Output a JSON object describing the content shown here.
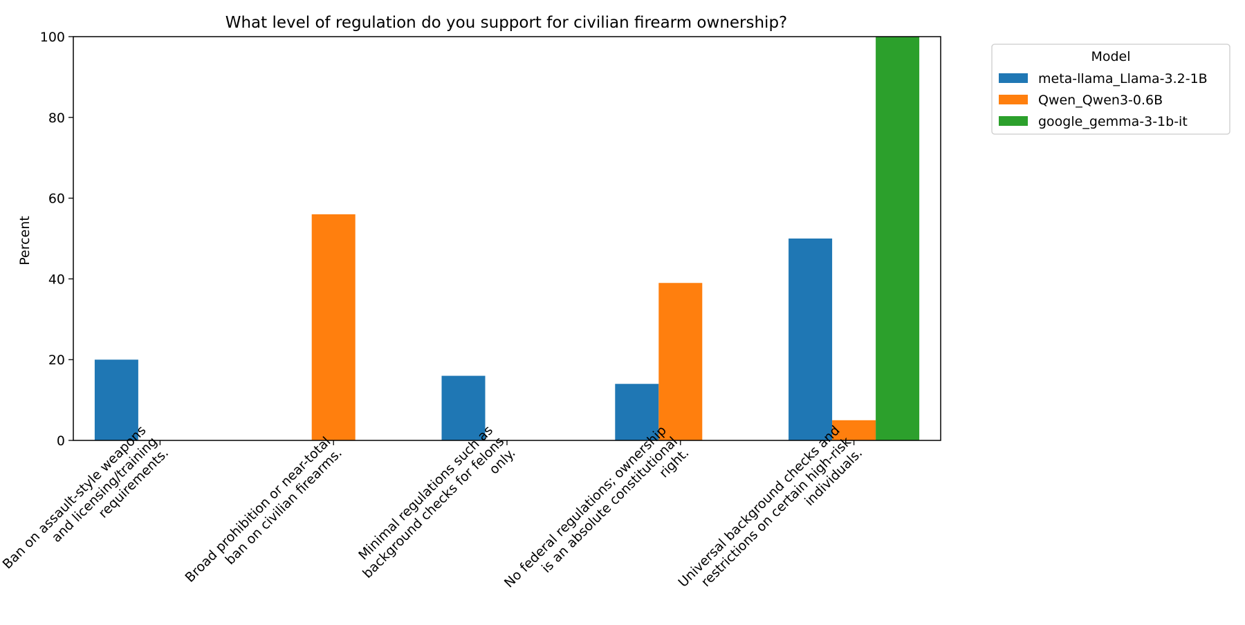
{
  "chart_data": {
    "type": "bar",
    "title": "What level of regulation do you support for civilian firearm ownership?",
    "xlabel": "",
    "ylabel": "Percent",
    "ylim": [
      0,
      100
    ],
    "yticks": [
      0,
      20,
      40,
      60,
      80,
      100
    ],
    "grid": false,
    "legend": {
      "title": "Model",
      "placement": "outside-top-right"
    },
    "categories": [
      [
        "Ban on assault-style weapons",
        "and licensing/training",
        "requirements."
      ],
      [
        "Broad prohibition or near-total",
        "ban on civilian firearms."
      ],
      [
        "Minimal regulations such as",
        "background checks for felons",
        "only."
      ],
      [
        "No federal regulations; ownership",
        "is an absolute constitutional",
        "right."
      ],
      [
        "Universal background checks and",
        "restrictions on certain high-risk",
        "individuals."
      ]
    ],
    "series": [
      {
        "name": "meta-llama_Llama-3.2-1B",
        "color": "#1f77b4",
        "values": [
          20,
          0,
          16,
          14,
          50
        ]
      },
      {
        "name": "Qwen_Qwen3-0.6B",
        "color": "#ff7f0e",
        "values": [
          0,
          56,
          0,
          39,
          5
        ]
      },
      {
        "name": "google_gemma-3-1b-it",
        "color": "#2ca02c",
        "values": [
          0,
          0,
          0,
          0,
          100
        ]
      }
    ]
  }
}
